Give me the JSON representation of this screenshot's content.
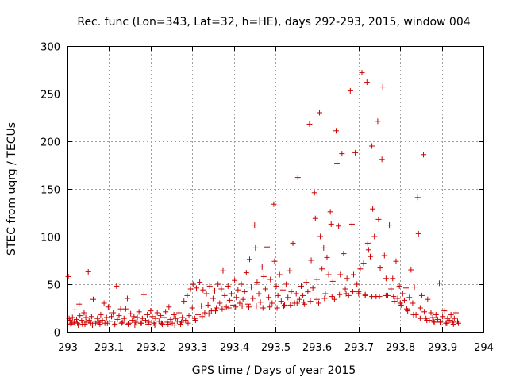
{
  "chart_data": {
    "type": "scatter",
    "title": "Rec. func (Lon=343, Lat=32, h=HE), days 292-293, 2015, window 004",
    "xlabel": "GPS time / Days of year 2015",
    "ylabel": "STEC from uqrg / TECUs",
    "xlim": [
      293,
      294
    ],
    "ylim": [
      0,
      300
    ],
    "grid": true,
    "x_ticks": [
      "293",
      "293.1",
      "293.2",
      "293.3",
      "293.4",
      "293.5",
      "293.6",
      "293.7",
      "293.8",
      "293.9",
      "294"
    ],
    "y_ticks": [
      "0",
      "50",
      "100",
      "150",
      "200",
      "250",
      "300"
    ],
    "marker": "+",
    "color": "#cc0000",
    "series": [
      {
        "points": [
          [
            293.002,
            58
          ],
          [
            293.004,
            14
          ],
          [
            293.006,
            12
          ],
          [
            293.008,
            8
          ],
          [
            293.012,
            15
          ],
          [
            293.016,
            10
          ],
          [
            293.018,
            23
          ],
          [
            293.022,
            13
          ],
          [
            293.024,
            9
          ],
          [
            293.028,
            29
          ],
          [
            293.03,
            17
          ],
          [
            293.034,
            12
          ],
          [
            293.036,
            8
          ],
          [
            293.04,
            20
          ],
          [
            293.044,
            15
          ],
          [
            293.046,
            10
          ],
          [
            293.05,
            63
          ],
          [
            293.052,
            12
          ],
          [
            293.056,
            9
          ],
          [
            293.058,
            16
          ],
          [
            293.062,
            34
          ],
          [
            293.064,
            11
          ],
          [
            293.068,
            9
          ],
          [
            293.072,
            14
          ],
          [
            293.076,
            10
          ],
          [
            293.08,
            18
          ],
          [
            293.084,
            12
          ],
          [
            293.088,
            30
          ],
          [
            293.09,
            9
          ],
          [
            293.094,
            15
          ],
          [
            293.098,
            26
          ],
          [
            293.102,
            11
          ],
          [
            293.106,
            16
          ],
          [
            293.11,
            20
          ],
          [
            293.114,
            8
          ],
          [
            293.118,
            48
          ],
          [
            293.12,
            13
          ],
          [
            293.124,
            17
          ],
          [
            293.128,
            24
          ],
          [
            293.132,
            10
          ],
          [
            293.136,
            14
          ],
          [
            293.14,
            24
          ],
          [
            293.144,
            35
          ],
          [
            293.148,
            9
          ],
          [
            293.152,
            19
          ],
          [
            293.156,
            12
          ],
          [
            293.16,
            16
          ],
          [
            293.164,
            10
          ],
          [
            293.168,
            15
          ],
          [
            293.172,
            21
          ],
          [
            293.176,
            9
          ],
          [
            293.18,
            14
          ],
          [
            293.184,
            39
          ],
          [
            293.188,
            12
          ],
          [
            293.192,
            18
          ],
          [
            293.196,
            10
          ],
          [
            293.2,
            22
          ],
          [
            293.204,
            16
          ],
          [
            293.208,
            9
          ],
          [
            293.212,
            14
          ],
          [
            293.216,
            20
          ],
          [
            293.22,
            11
          ],
          [
            293.224,
            17
          ],
          [
            293.228,
            8
          ],
          [
            293.232,
            15
          ],
          [
            293.236,
            21
          ],
          [
            293.24,
            10
          ],
          [
            293.244,
            26
          ],
          [
            293.248,
            13
          ],
          [
            293.252,
            9
          ],
          [
            293.256,
            18
          ],
          [
            293.26,
            14
          ],
          [
            293.264,
            11
          ],
          [
            293.268,
            20
          ],
          [
            293.272,
            8
          ],
          [
            293.276,
            15
          ],
          [
            293.28,
            32
          ],
          [
            293.284,
            12
          ],
          [
            293.288,
            38
          ],
          [
            293.292,
            17
          ],
          [
            293.296,
            45
          ],
          [
            293.3,
            25
          ],
          [
            293.302,
            50
          ],
          [
            293.306,
            14
          ],
          [
            293.31,
            46
          ],
          [
            293.314,
            18
          ],
          [
            293.318,
            52
          ],
          [
            293.322,
            27
          ],
          [
            293.326,
            44
          ],
          [
            293.33,
            20
          ],
          [
            293.334,
            40
          ],
          [
            293.338,
            28
          ],
          [
            293.342,
            48
          ],
          [
            293.346,
            22
          ],
          [
            293.35,
            35
          ],
          [
            293.354,
            43
          ],
          [
            293.358,
            25
          ],
          [
            293.362,
            50
          ],
          [
            293.366,
            30
          ],
          [
            293.37,
            45
          ],
          [
            293.374,
            64
          ],
          [
            293.378,
            38
          ],
          [
            293.382,
            26
          ],
          [
            293.386,
            48
          ],
          [
            293.39,
            33
          ],
          [
            293.394,
            40
          ],
          [
            293.398,
            28
          ],
          [
            293.402,
            54
          ],
          [
            293.406,
            36
          ],
          [
            293.41,
            44
          ],
          [
            293.414,
            30
          ],
          [
            293.418,
            50
          ],
          [
            293.422,
            34
          ],
          [
            293.426,
            42
          ],
          [
            293.43,
            62
          ],
          [
            293.434,
            29
          ],
          [
            293.438,
            76
          ],
          [
            293.442,
            47
          ],
          [
            293.446,
            35
          ],
          [
            293.45,
            112
          ],
          [
            293.452,
            88
          ],
          [
            293.456,
            52
          ],
          [
            293.46,
            40
          ],
          [
            293.464,
            31
          ],
          [
            293.468,
            68
          ],
          [
            293.472,
            58
          ],
          [
            293.476,
            45
          ],
          [
            293.48,
            89
          ],
          [
            293.484,
            36
          ],
          [
            293.488,
            55
          ],
          [
            293.492,
            30
          ],
          [
            293.496,
            134
          ],
          [
            293.498,
            74
          ],
          [
            293.502,
            48
          ],
          [
            293.506,
            38
          ],
          [
            293.51,
            60
          ],
          [
            293.514,
            32
          ],
          [
            293.518,
            44
          ],
          [
            293.522,
            28
          ],
          [
            293.526,
            50
          ],
          [
            293.53,
            36
          ],
          [
            293.534,
            64
          ],
          [
            293.538,
            42
          ],
          [
            293.542,
            93
          ],
          [
            293.546,
            30
          ],
          [
            293.55,
            40
          ],
          [
            293.554,
            162
          ],
          [
            293.558,
            34
          ],
          [
            293.562,
            48
          ],
          [
            293.566,
            38
          ],
          [
            293.57,
            29
          ],
          [
            293.574,
            52
          ],
          [
            293.578,
            42
          ],
          [
            293.582,
            218
          ],
          [
            293.586,
            75
          ],
          [
            293.59,
            46
          ],
          [
            293.594,
            146
          ],
          [
            293.596,
            119
          ],
          [
            293.6,
            55
          ],
          [
            293.604,
            30
          ],
          [
            293.606,
            230
          ],
          [
            293.608,
            100
          ],
          [
            293.612,
            66
          ],
          [
            293.616,
            88
          ],
          [
            293.62,
            40
          ],
          [
            293.624,
            78
          ],
          [
            293.628,
            60
          ],
          [
            293.632,
            126
          ],
          [
            293.634,
            113
          ],
          [
            293.638,
            53
          ],
          [
            293.642,
            34
          ],
          [
            293.646,
            211
          ],
          [
            293.648,
            177
          ],
          [
            293.652,
            111
          ],
          [
            293.656,
            60
          ],
          [
            293.66,
            187
          ],
          [
            293.664,
            82
          ],
          [
            293.668,
            45
          ],
          [
            293.672,
            56
          ],
          [
            293.676,
            38
          ],
          [
            293.68,
            253
          ],
          [
            293.684,
            113
          ],
          [
            293.688,
            60
          ],
          [
            293.692,
            188
          ],
          [
            293.696,
            50
          ],
          [
            293.7,
            42
          ],
          [
            293.704,
            66
          ],
          [
            293.708,
            272
          ],
          [
            293.712,
            72
          ],
          [
            293.716,
            39
          ],
          [
            293.72,
            262
          ],
          [
            293.722,
            93
          ],
          [
            293.724,
            86
          ],
          [
            293.728,
            79
          ],
          [
            293.732,
            195
          ],
          [
            293.734,
            129
          ],
          [
            293.738,
            100
          ],
          [
            293.742,
            37
          ],
          [
            293.746,
            221
          ],
          [
            293.748,
            118
          ],
          [
            293.752,
            67
          ],
          [
            293.756,
            181
          ],
          [
            293.758,
            257
          ],
          [
            293.762,
            80
          ],
          [
            293.766,
            56
          ],
          [
            293.77,
            38
          ],
          [
            293.774,
            112
          ],
          [
            293.778,
            45
          ],
          [
            293.782,
            56
          ],
          [
            293.786,
            32
          ],
          [
            293.79,
            74
          ],
          [
            293.794,
            35
          ],
          [
            293.798,
            48
          ],
          [
            293.802,
            28
          ],
          [
            293.806,
            40
          ],
          [
            293.81,
            33
          ],
          [
            293.814,
            46
          ],
          [
            293.818,
            22
          ],
          [
            293.822,
            36
          ],
          [
            293.826,
            65
          ],
          [
            293.83,
            30
          ],
          [
            293.834,
            47
          ],
          [
            293.838,
            18
          ],
          [
            293.842,
            141
          ],
          [
            293.844,
            103
          ],
          [
            293.848,
            25
          ],
          [
            293.852,
            38
          ],
          [
            293.856,
            186
          ],
          [
            293.858,
            21
          ],
          [
            293.862,
            14
          ],
          [
            293.866,
            34
          ],
          [
            293.87,
            12
          ],
          [
            293.874,
            20
          ],
          [
            293.878,
            15
          ],
          [
            293.882,
            10
          ],
          [
            293.886,
            18
          ],
          [
            293.89,
            13
          ],
          [
            293.894,
            51
          ],
          [
            293.898,
            11
          ],
          [
            293.902,
            16
          ],
          [
            293.906,
            22
          ],
          [
            293.91,
            9
          ],
          [
            293.914,
            14
          ],
          [
            293.918,
            12
          ],
          [
            293.922,
            18
          ],
          [
            293.926,
            10
          ],
          [
            293.93,
            14
          ],
          [
            293.934,
            20
          ],
          [
            293.938,
            11
          ],
          [
            293.01,
            9
          ],
          [
            293.026,
            7
          ],
          [
            293.042,
            8
          ],
          [
            293.06,
            7
          ],
          [
            293.078,
            8
          ],
          [
            293.096,
            9
          ],
          [
            293.112,
            7
          ],
          [
            293.13,
            9
          ],
          [
            293.146,
            8
          ],
          [
            293.162,
            7
          ],
          [
            293.178,
            9
          ],
          [
            293.194,
            8
          ],
          [
            293.21,
            7
          ],
          [
            293.226,
            9
          ],
          [
            293.242,
            8
          ],
          [
            293.258,
            7
          ],
          [
            293.274,
            10
          ],
          [
            293.29,
            9
          ],
          [
            293.308,
            12
          ],
          [
            293.324,
            16
          ],
          [
            293.34,
            19
          ],
          [
            293.356,
            22
          ],
          [
            293.372,
            24
          ],
          [
            293.388,
            25
          ],
          [
            293.404,
            26
          ],
          [
            293.42,
            27
          ],
          [
            293.436,
            26
          ],
          [
            293.454,
            27
          ],
          [
            293.47,
            25
          ],
          [
            293.486,
            26
          ],
          [
            293.504,
            25
          ],
          [
            293.52,
            27
          ],
          [
            293.536,
            28
          ],
          [
            293.552,
            30
          ],
          [
            293.568,
            31
          ],
          [
            293.584,
            32
          ],
          [
            293.6,
            34
          ],
          [
            293.618,
            35
          ],
          [
            293.636,
            37
          ],
          [
            293.654,
            39
          ],
          [
            293.67,
            40
          ],
          [
            293.686,
            42
          ],
          [
            293.7,
            40
          ],
          [
            293.716,
            38
          ],
          [
            293.732,
            37
          ],
          [
            293.75,
            37
          ],
          [
            293.766,
            38
          ],
          [
            293.784,
            37
          ],
          [
            293.8,
            30
          ],
          [
            293.816,
            24
          ],
          [
            293.832,
            18
          ],
          [
            293.848,
            14
          ],
          [
            293.864,
            12
          ],
          [
            293.88,
            11
          ],
          [
            293.896,
            10
          ],
          [
            293.912,
            9
          ],
          [
            293.928,
            8
          ],
          [
            293.94,
            9
          ]
        ]
      }
    ]
  }
}
